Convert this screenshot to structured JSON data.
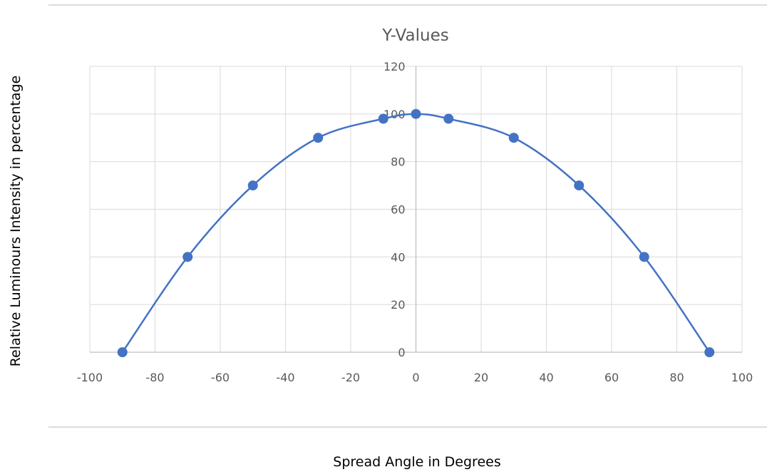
{
  "page": {
    "y_axis_label": "Relative Luminours Intensity in percentage",
    "x_axis_label": "Spread Angle in Degrees"
  },
  "chart_data": {
    "type": "scatter",
    "title": "Y-Values",
    "xlim": [
      -100,
      100
    ],
    "ylim": [
      0,
      120
    ],
    "x_ticks": [
      -100,
      -80,
      -60,
      -40,
      -20,
      0,
      20,
      40,
      60,
      80,
      100
    ],
    "y_ticks": [
      0,
      20,
      40,
      60,
      80,
      100,
      120
    ],
    "grid": true,
    "smoothed_line": true,
    "series": [
      {
        "color": "#4472c4",
        "x": [
          -90,
          -70,
          -50,
          -30,
          -10,
          0,
          10,
          30,
          50,
          70,
          90
        ],
        "y": [
          0,
          40,
          70,
          90,
          98,
          100,
          98,
          90,
          70,
          40,
          0
        ]
      }
    ]
  }
}
